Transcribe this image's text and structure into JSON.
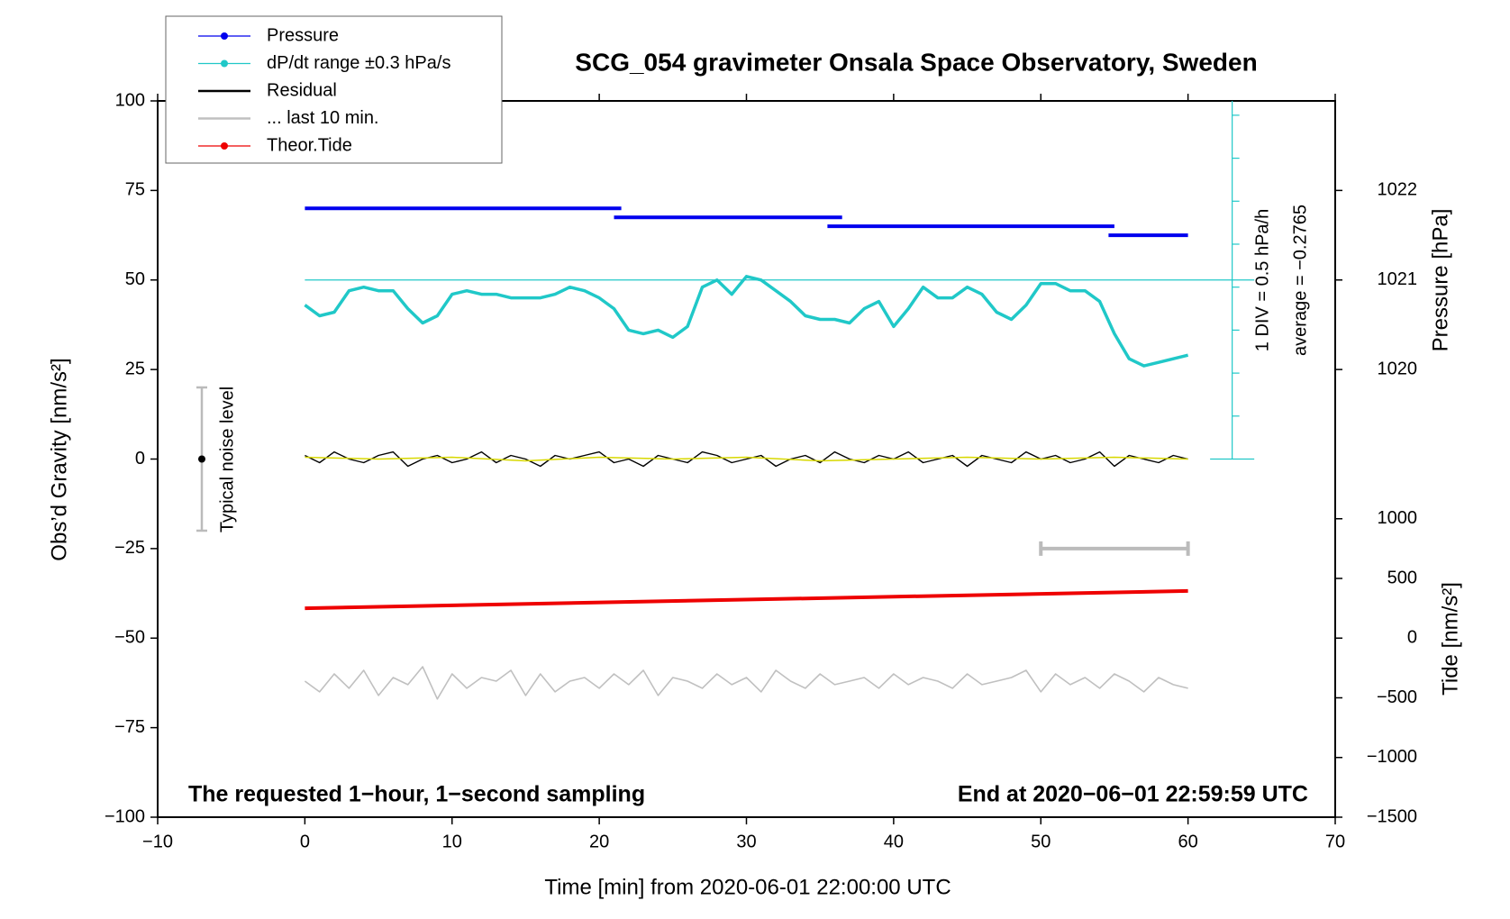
{
  "chart_data": {
    "type": "line",
    "title": "SCG_054 gravimeter Onsala Space Observatory, Sweden",
    "xlabel": "Time [min] from 2020-06-01 22:00:00 UTC",
    "ylabel": "Obs’d Gravity [nm/s²]",
    "y2label": "Pressure [hPa]",
    "y3label": "Tide [nm/s²]",
    "annotations": {
      "div": "1 DIV = 0.5 hPa/h",
      "average": "average = −0.2765",
      "noise": "Typical noise level",
      "left_note": "The requested 1−hour, 1−second sampling",
      "right_note": "End at 2020−06−01 22:59:59 UTC"
    },
    "xlim": [
      -10,
      70
    ],
    "xticks": [
      {
        "value": -10,
        "label": "−10"
      },
      0,
      10,
      20,
      30,
      40,
      50,
      60,
      70
    ],
    "ylim": [
      -100,
      100
    ],
    "yticks": [
      {
        "value": -100,
        "label": "−100"
      },
      {
        "value": -75,
        "label": "−75"
      },
      {
        "value": -50,
        "label": "−50"
      },
      {
        "value": -25,
        "label": "−25"
      },
      0,
      25,
      50,
      75,
      100
    ],
    "y2lim": [
      1015,
      1023
    ],
    "y2ticks": [
      1020,
      1021,
      1022
    ],
    "y3lim": [
      -1500,
      4500
    ],
    "y3ticks": [
      {
        "value": -1500,
        "label": "−1500"
      },
      {
        "value": -1000,
        "label": "−1000"
      },
      {
        "value": -500,
        "label": "−500"
      },
      0,
      500,
      1000
    ],
    "x": [
      0,
      1,
      2,
      3,
      4,
      5,
      6,
      7,
      8,
      9,
      10,
      11,
      12,
      13,
      14,
      15,
      16,
      17,
      18,
      19,
      20,
      21,
      22,
      23,
      24,
      25,
      26,
      27,
      28,
      29,
      30,
      31,
      32,
      33,
      34,
      35,
      36,
      37,
      38,
      39,
      40,
      41,
      42,
      43,
      44,
      45,
      46,
      47,
      48,
      49,
      50,
      51,
      52,
      53,
      54,
      55,
      56,
      57,
      58,
      59,
      60
    ],
    "series": [
      {
        "name": "Pressure",
        "color": "#0000ee",
        "axis": "y2",
        "marker": true,
        "width": 4,
        "x": [
          0,
          21.5,
          21.5,
          21,
          36.5,
          36.5,
          35.5,
          55,
          55,
          54.6,
          60
        ],
        "values": [
          1021.8,
          1021.8,
          null,
          1021.7,
          1021.7,
          null,
          1021.6,
          1021.6,
          null,
          1021.5,
          1021.5
        ]
      },
      {
        "name": "dP/dt range ±0.3 hPa/s",
        "color": "#20c8c8",
        "marker": true,
        "width": 3.5,
        "values": [
          43,
          40,
          41,
          47,
          48,
          47,
          47,
          42,
          38,
          40,
          46,
          47,
          46,
          46,
          45,
          45,
          45,
          46,
          48,
          47,
          45,
          42,
          36,
          35,
          36,
          34,
          37,
          48,
          50,
          46,
          51,
          50,
          47,
          44,
          40,
          39,
          39,
          38,
          42,
          44,
          37,
          42,
          48,
          45,
          45,
          48,
          46,
          41,
          39,
          43,
          49,
          49,
          47,
          47,
          44,
          35,
          28,
          26,
          27,
          28,
          29
        ]
      },
      {
        "name": "Residual",
        "color": "#000000",
        "width": 1.4,
        "values": [
          1,
          -1,
          2,
          0,
          -1,
          1,
          2,
          -2,
          0,
          1,
          -1,
          0,
          2,
          -1,
          1,
          0,
          -2,
          1,
          0,
          1,
          2,
          -1,
          0,
          -2,
          1,
          0,
          -1,
          2,
          1,
          -1,
          0,
          1,
          -2,
          0,
          1,
          -1,
          2,
          0,
          -1,
          1,
          0,
          2,
          -1,
          0,
          1,
          -2,
          1,
          0,
          -1,
          2,
          0,
          1,
          -1,
          0,
          2,
          -2,
          1,
          0,
          -1,
          1,
          0
        ]
      },
      {
        "color": "#d8d800",
        "width": 1.5,
        "x": [
          0,
          5,
          10,
          15,
          20,
          25,
          30,
          35,
          40,
          45,
          50,
          55,
          60
        ],
        "values": [
          0.5,
          0,
          0.5,
          -0.5,
          0.5,
          0,
          0.5,
          -0.5,
          0,
          0.5,
          0,
          0.5,
          0
        ]
      },
      {
        "name": "... last 10 min.",
        "color": "#c0c0c0",
        "width": 1.6,
        "values": [
          -62,
          -65,
          -60,
          -64,
          -59,
          -66,
          -61,
          -63,
          -58,
          -67,
          -60,
          -64,
          -61,
          -62,
          -59,
          -66,
          -60,
          -65,
          -62,
          -61,
          -64,
          -60,
          -63,
          -59,
          -66,
          -61,
          -62,
          -64,
          -60,
          -63,
          -61,
          -65,
          -59,
          -62,
          -64,
          -60,
          -63,
          -62,
          -61,
          -64,
          -60,
          -63,
          -61,
          -62,
          -64,
          -60,
          -63,
          -62,
          -61,
          -59,
          -65,
          -60,
          -63,
          -61,
          -64,
          -60,
          -62,
          -65,
          -61,
          -63,
          -64
        ]
      },
      {
        "name": "Theor.Tide",
        "color": "#ee0000",
        "axis": "y3",
        "marker": true,
        "width": 4,
        "x": [
          0,
          60
        ],
        "values": [
          250,
          395
        ]
      }
    ],
    "noise_bar": {
      "x": -7,
      "low": -20,
      "high": 20,
      "center": 0
    },
    "last_10_min_bar": {
      "y": -25,
      "from": 50,
      "to": 60
    }
  }
}
